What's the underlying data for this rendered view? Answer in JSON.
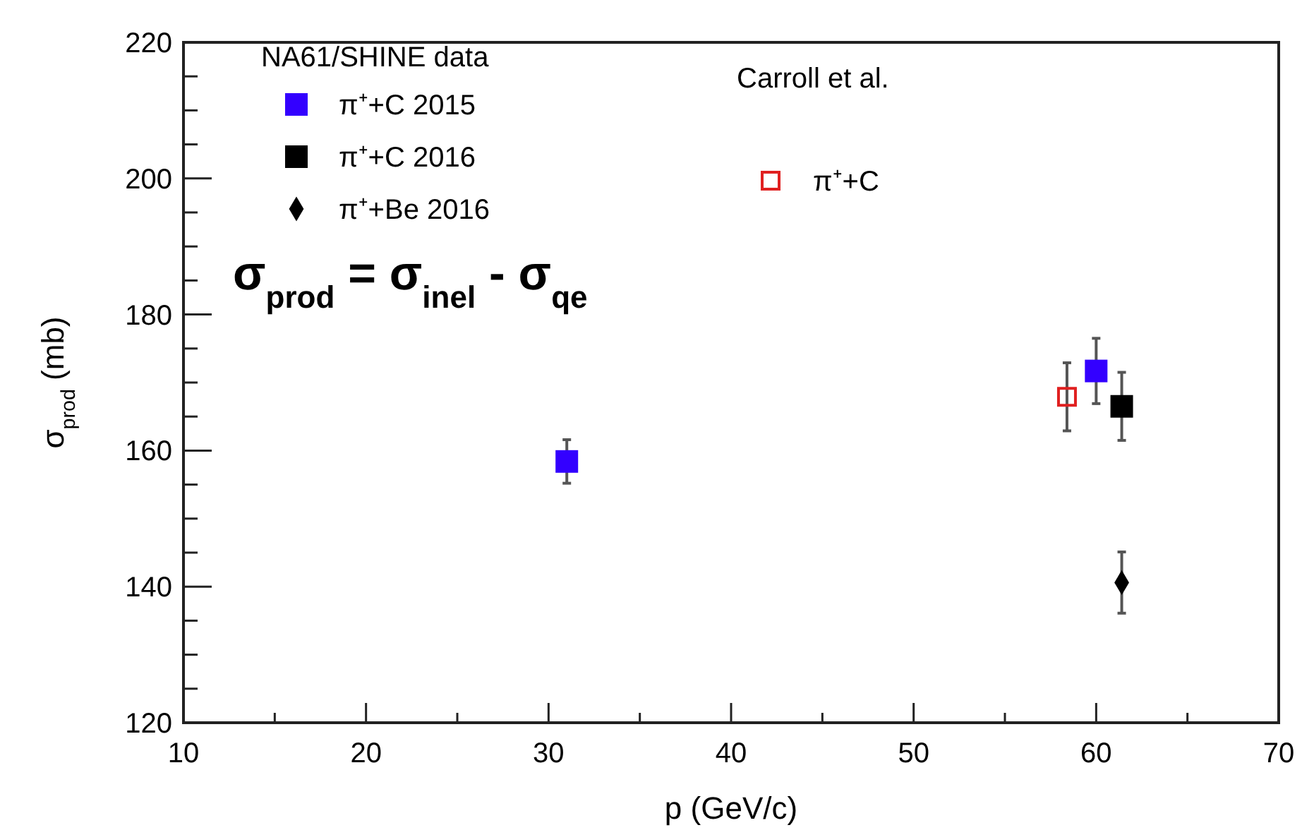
{
  "chart_data": {
    "type": "scatter",
    "xlabel": "p (GeV/c)",
    "ylabel": "σ$_{prod}$ (mb)",
    "legend_title": "NA61/SHINE data",
    "legend": "top left",
    "annotations": [
      "Carroll et al.",
      "σ$_{prod}$ = σ$_{inel}$ - σ$_{qe}$"
    ],
    "xlim": [
      10,
      70
    ],
    "ylim": [
      120,
      220
    ],
    "xticks": [
      10,
      {
        "value": 15,
        "label": null
      },
      20,
      {
        "value": 25,
        "label": null
      },
      30,
      {
        "value": 35,
        "label": null
      },
      40,
      {
        "value": 45,
        "label": null
      },
      50,
      {
        "value": 55,
        "label": null
      },
      60,
      {
        "value": 65,
        "label": null
      },
      70
    ],
    "yticks": [
      120,
      {
        "value": 125,
        "label": null
      },
      {
        "value": 130,
        "label": null
      },
      {
        "value": 135,
        "label": null
      },
      140,
      {
        "value": 145,
        "label": null
      },
      {
        "value": 150,
        "label": null
      },
      {
        "value": 155,
        "label": null
      },
      160,
      {
        "value": 165,
        "label": null
      },
      {
        "value": 170,
        "label": null
      },
      {
        "value": 175,
        "label": null
      },
      180,
      {
        "value": 185,
        "label": null
      },
      {
        "value": 190,
        "label": null
      },
      {
        "value": 195,
        "label": null
      },
      200,
      {
        "value": 205,
        "label": null
      },
      {
        "value": 210,
        "label": null
      },
      {
        "value": 215,
        "label": null
      },
      220
    ],
    "grid": false,
    "series": [
      {
        "name": "π⁺+C 2015",
        "color": "#3300ff",
        "marker": "square",
        "x": [
          31,
          60
        ],
        "values": [
          158.4,
          171.7
        ],
        "errors": [
          3.2,
          4.8
        ]
      },
      {
        "name": "π⁺+C 2016",
        "color": "#000000",
        "marker": "square",
        "x": [
          61.4
        ],
        "values": [
          166.5
        ],
        "errors": [
          5
        ]
      },
      {
        "name": "π⁺+Be 2016",
        "color": "#000000",
        "marker": "diamond",
        "x": [
          61.4
        ],
        "values": [
          140.6
        ],
        "errors": [
          4.5
        ]
      },
      {
        "name": "π⁺+C",
        "color": "#e02020",
        "marker": "square-open",
        "x": [
          58.4
        ],
        "values": [
          167.9
        ],
        "errors": [
          5
        ]
      }
    ]
  }
}
